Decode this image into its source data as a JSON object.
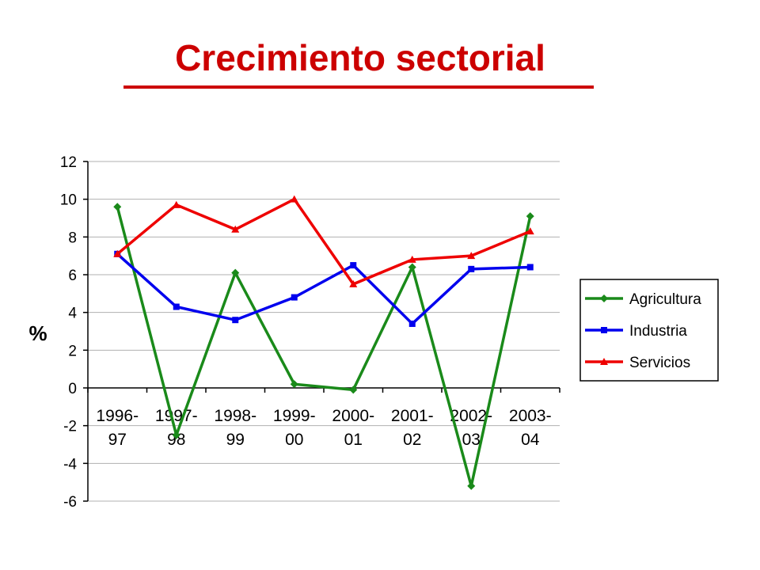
{
  "page": {
    "title": "Crecimiento sectorial"
  },
  "chart_data": {
    "type": "line",
    "categories": [
      [
        "1996-",
        "97"
      ],
      [
        "1997-",
        "98"
      ],
      [
        "1998-",
        "99"
      ],
      [
        "1999-",
        "00"
      ],
      [
        "2000-",
        "01"
      ],
      [
        "2001-",
        "02"
      ],
      [
        "2002-",
        "03"
      ],
      [
        "2003-",
        "04"
      ]
    ],
    "series": [
      {
        "name": "Agricultura",
        "color": "#1a8a1a",
        "marker": "diamond",
        "values": [
          9.6,
          -2.5,
          6.1,
          0.2,
          -0.1,
          6.4,
          -5.2,
          9.1
        ]
      },
      {
        "name": "Industria",
        "color": "#0000ee",
        "marker": "square",
        "values": [
          7.1,
          4.3,
          3.6,
          4.8,
          6.5,
          3.4,
          6.3,
          6.4
        ]
      },
      {
        "name": "Servicios",
        "color": "#ee0000",
        "marker": "triangle",
        "values": [
          7.1,
          9.7,
          8.4,
          10.0,
          5.5,
          6.8,
          7.0,
          8.3
        ]
      }
    ],
    "title": "",
    "xlabel": "",
    "ylabel": "%",
    "ylim": [
      -6,
      12
    ],
    "yticks": [
      12,
      10,
      8,
      6,
      4,
      2,
      0,
      -2,
      -4,
      -6
    ],
    "grid": true,
    "legend": "right"
  }
}
